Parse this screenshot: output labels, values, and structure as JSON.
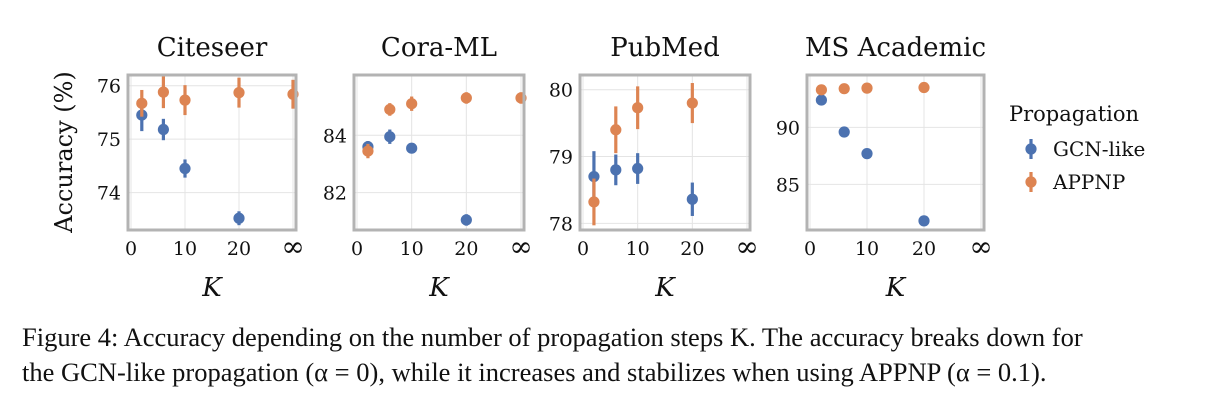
{
  "colors": {
    "gcn": "#4C72B0",
    "appnp": "#DD8452",
    "frame": "#b3b3b3",
    "grid": "#e4e4e4"
  },
  "ylabel": "Accuracy (%)",
  "legend": {
    "title": "Propagation",
    "items": [
      "GCN-like",
      "APPNP"
    ]
  },
  "caption": {
    "line1": "Figure 4: Accuracy depending on the number of propagation steps K. The accuracy breaks down for",
    "line2": "the GCN-like propagation (α = 0), while it increases and stabilizes when using APPNP (α = 0.1)."
  },
  "chart_data": [
    {
      "type": "scatter",
      "title": "Citeseer",
      "xlabel": "K",
      "x_ticks": [
        0,
        10,
        20,
        "∞"
      ],
      "ylim": [
        73.3,
        76.2
      ],
      "y_ticks": [
        74,
        75,
        76
      ],
      "series": [
        {
          "name": "GCN-like",
          "points": [
            {
              "x": 2,
              "y": 75.45,
              "err": 0.3
            },
            {
              "x": 6,
              "y": 75.18,
              "err": 0.2
            },
            {
              "x": 10,
              "y": 74.45,
              "err": 0.17
            },
            {
              "x": 20,
              "y": 73.52,
              "err": 0.13
            }
          ]
        },
        {
          "name": "APPNP",
          "points": [
            {
              "x": 2,
              "y": 75.67,
              "err": 0.25
            },
            {
              "x": 6,
              "y": 75.88,
              "err": 0.3
            },
            {
              "x": 10,
              "y": 75.73,
              "err": 0.28
            },
            {
              "x": 20,
              "y": 75.87,
              "err": 0.28
            },
            {
              "x": "∞",
              "y": 75.84,
              "err": 0.27
            }
          ]
        }
      ]
    },
    {
      "type": "scatter",
      "title": "Cora-ML",
      "xlabel": "K",
      "x_ticks": [
        0,
        10,
        20,
        "∞"
      ],
      "ylim": [
        80.7,
        86.1
      ],
      "y_ticks": [
        82,
        84
      ],
      "series": [
        {
          "name": "GCN-like",
          "points": [
            {
              "x": 2,
              "y": 83.6,
              "err": 0.2
            },
            {
              "x": 6,
              "y": 83.95,
              "err": 0.25
            },
            {
              "x": 10,
              "y": 83.55,
              "err": 0.1
            },
            {
              "x": 20,
              "y": 81.05,
              "err": 0.2
            }
          ]
        },
        {
          "name": "APPNP",
          "points": [
            {
              "x": 2,
              "y": 83.45,
              "err": 0.25
            },
            {
              "x": 6,
              "y": 84.9,
              "err": 0.22
            },
            {
              "x": 10,
              "y": 85.1,
              "err": 0.25
            },
            {
              "x": 20,
              "y": 85.3,
              "err": 0.2
            },
            {
              "x": "∞",
              "y": 85.3,
              "err": 0.2
            }
          ]
        }
      ]
    },
    {
      "type": "scatter",
      "title": "PubMed",
      "xlabel": "K",
      "x_ticks": [
        0,
        10,
        20,
        "∞"
      ],
      "ylim": [
        77.9,
        80.22
      ],
      "y_ticks": [
        78,
        79,
        80
      ],
      "series": [
        {
          "name": "GCN-like",
          "points": [
            {
              "x": 2,
              "y": 78.7,
              "err": 0.38
            },
            {
              "x": 6,
              "y": 78.8,
              "err": 0.23
            },
            {
              "x": 10,
              "y": 78.82,
              "err": 0.23
            },
            {
              "x": 20,
              "y": 78.36,
              "err": 0.25
            }
          ]
        },
        {
          "name": "APPNP",
          "points": [
            {
              "x": 2,
              "y": 78.32,
              "err": 0.35
            },
            {
              "x": 6,
              "y": 79.4,
              "err": 0.35
            },
            {
              "x": 10,
              "y": 79.73,
              "err": 0.32
            },
            {
              "x": 20,
              "y": 79.8,
              "err": 0.3
            }
          ]
        }
      ]
    },
    {
      "type": "scatter",
      "title": "MS Academic",
      "xlabel": "K",
      "x_ticks": [
        0,
        10,
        20,
        "∞"
      ],
      "ylim": [
        81,
        94.6
      ],
      "y_ticks": [
        85,
        90
      ],
      "series": [
        {
          "name": "GCN-like",
          "points": [
            {
              "x": 2,
              "y": 92.4,
              "err": 0
            },
            {
              "x": 6,
              "y": 89.6,
              "err": 0
            },
            {
              "x": 10,
              "y": 87.7,
              "err": 0
            },
            {
              "x": 20,
              "y": 81.8,
              "err": 0
            }
          ]
        },
        {
          "name": "APPNP",
          "points": [
            {
              "x": 2,
              "y": 93.3,
              "err": 0
            },
            {
              "x": 6,
              "y": 93.4,
              "err": 0
            },
            {
              "x": 10,
              "y": 93.45,
              "err": 0
            },
            {
              "x": 20,
              "y": 93.5,
              "err": 0
            }
          ]
        }
      ]
    }
  ]
}
